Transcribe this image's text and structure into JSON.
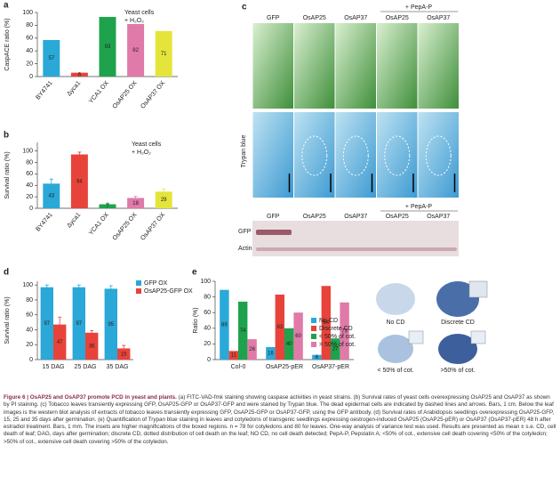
{
  "chart_data": [
    {
      "type": "bar",
      "panel": "a",
      "annotation": [
        "Yeast cells",
        "+ H₂O₂"
      ],
      "ylabel": "CaspACE ratio (%)",
      "categories": [
        "BY4741",
        "Δyca1",
        "YCA1 OX",
        "OsAP25 OX",
        "OsAP37 OX"
      ],
      "values": [
        57,
        6,
        93,
        82,
        71
      ],
      "colors": [
        "#2aa8d8",
        "#e8433a",
        "#1ea34c",
        "#e07aa8",
        "#e4e43a"
      ],
      "ylim": [
        0,
        100
      ],
      "yticks": [
        0,
        20,
        40,
        60,
        80,
        100
      ]
    },
    {
      "type": "bar",
      "panel": "b",
      "annotation": [
        "Yeast cells",
        "+ H₂O₂"
      ],
      "ylabel": "Survival ratio (%)",
      "categories": [
        "BY4741",
        "Δyca1",
        "YCA1 OX",
        "OsAP25 OX",
        "OsAP37 OX"
      ],
      "values": [
        43,
        94,
        7,
        18,
        29
      ],
      "errors": [
        8,
        4,
        2,
        3,
        5
      ],
      "colors": [
        "#2aa8d8",
        "#e8433a",
        "#1ea34c",
        "#e07aa8",
        "#e4e43a"
      ],
      "ylim": [
        0,
        115
      ],
      "yticks": [
        0,
        20,
        40,
        60,
        80,
        100
      ]
    },
    {
      "type": "bar",
      "panel": "d",
      "ylabel": "Survival ratio (%)",
      "categories": [
        "15 DAG",
        "25 DAG",
        "35 DAG"
      ],
      "series": [
        {
          "name": "GFP OX",
          "color": "#2aa8d8",
          "values": [
            97,
            97,
            95
          ],
          "errors": [
            3,
            3,
            4
          ]
        },
        {
          "name": "OsAP25-GFP OX",
          "color": "#e8433a",
          "values": [
            47,
            36,
            15
          ],
          "errors": [
            10,
            3,
            4
          ]
        }
      ],
      "ylim": [
        0,
        105
      ],
      "yticks": [
        0,
        20,
        40,
        60,
        80,
        100
      ]
    },
    {
      "type": "bar",
      "panel": "e",
      "ylabel": "Ratio (%)",
      "categories": [
        "Col-0",
        "OsAP25-pER",
        "OsAP37-pER"
      ],
      "series": [
        {
          "name": "No CD",
          "color": "#2aa8d8",
          "values": [
            89,
            16,
            6
          ]
        },
        {
          "name": "Discrete CD",
          "color": "#e8433a",
          "values": [
            11,
            83,
            94
          ]
        },
        {
          "name": "< 50% of cot.",
          "color": "#1ea34c",
          "values": [
            74,
            40,
            27
          ]
        },
        {
          "name": "> 50% of cot.",
          "color": "#e07aa8",
          "values": [
            26,
            60,
            73
          ]
        }
      ],
      "ylim": [
        0,
        100
      ],
      "yticks": [
        0,
        20,
        40,
        60,
        80,
        100
      ]
    }
  ],
  "panel_c": {
    "panel": "c",
    "pepa": "+ PepA-P",
    "columns": [
      "GFP",
      "OsAP25",
      "OsAP37",
      "OsAP25",
      "OsAP37"
    ],
    "row_label": "Trypan blue",
    "blot": {
      "columns": [
        "GFP",
        "OsAP25",
        "OsAP37",
        "OsAP25",
        "OsAP37"
      ],
      "pepa": "+ PepA-P",
      "rows": [
        "GFP",
        "Actin"
      ]
    }
  },
  "panel_e_insets": [
    "No CD",
    "Discrete CD",
    "< 50% of cot.",
    ">50% of cot."
  ],
  "caption": {
    "label": "Figure 6 | OsAP25 and OsAP37 promote PCD in yeast and plants.",
    "text": " (a) FITC-VAD-fmk staining showing caspase activities in yeast strains. (b) Survival rates of yeast cells overexpressing OsAP25 and OsAP37 as shown by PI staining. (c) Tobacco leaves transiently expressing GFP, OsAP25-GFP or OsAP37-GFP and were stained by Trypan blue. The dead epidermal cells are indicated by dashed lines and arrows. Bars, 1 cm. Below the leaf images is the western blot analysis of extracts of tobacco leaves transiently expressing GFP, OsAP25-GFP or OsAP37-GFP, using the GFP antibody. (d) Survival rates of Arabidopsis seedlings overexpressing OsAP25-GFP, 15, 25 and 35 days after germination. (e) Quantification of Trypan blue staining in leaves and cotyledons of transgenic seedlings expressing oestrogen-induced OsAP25 (OsAP25-pER) or OsAP37 (OsAP37-pER) 48 h after estradiol treatment. Bars, 1 mm. The insets are higher magnifications of the boxed regions. n = 78 for cotyledons and 80 for leaves. One-way analysis of variance test was used. Results are presented as mean ± s.e. CD, cell death of leaf; DAG, days after germination; discrete CD, dotted distribution of cell death on the leaf; NO CD, no cell death detected; PepA-P, Pepstatin A; <50% of cot., extensive cell death covering <50% of the cotyledon; >50% of cot., extensive cell death covering >50% of the cotyledon."
  }
}
